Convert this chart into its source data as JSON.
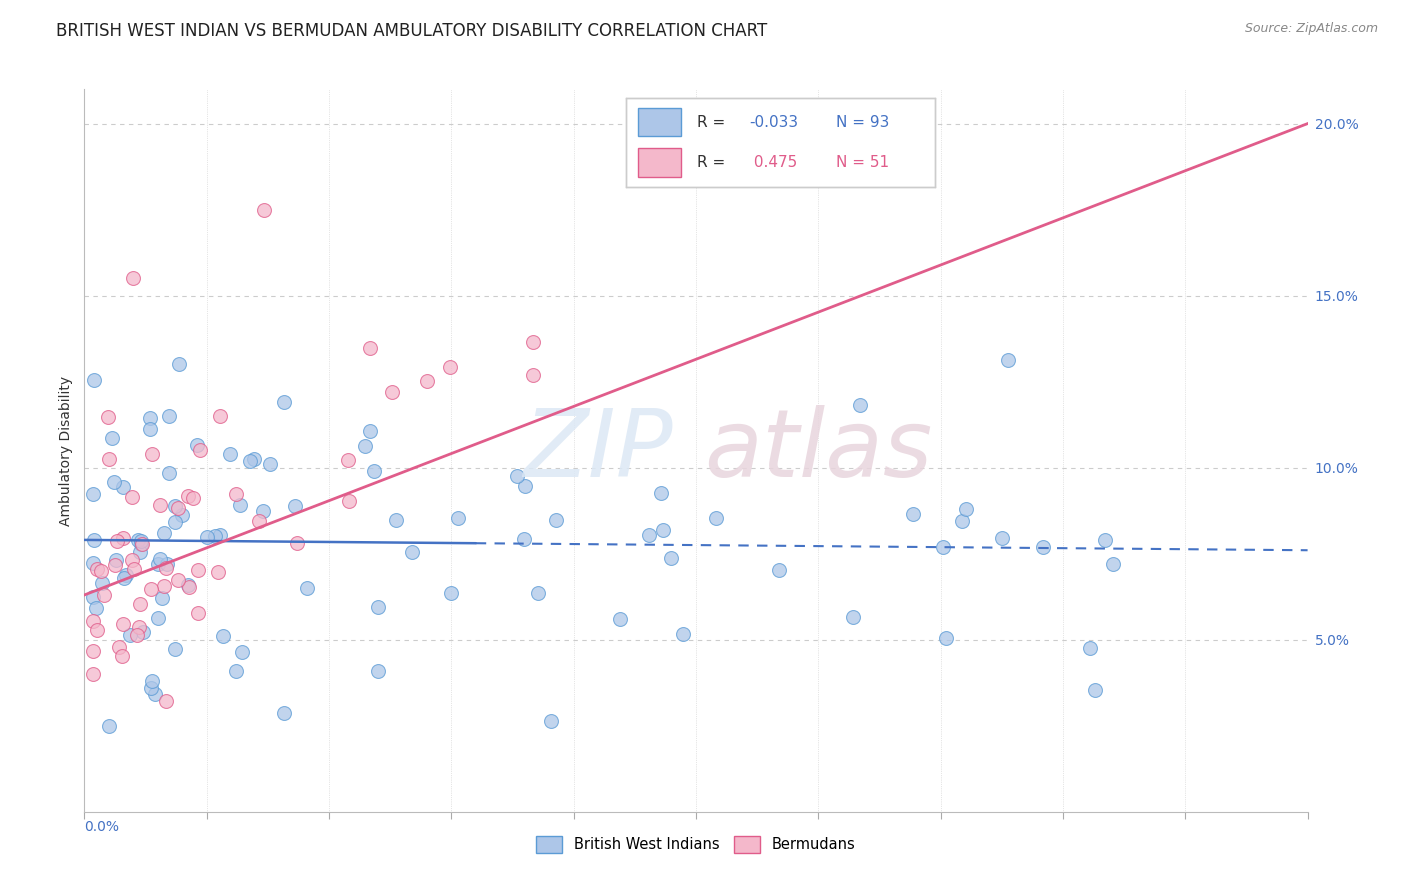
{
  "title": "BRITISH WEST INDIAN VS BERMUDAN AMBULATORY DISABILITY CORRELATION CHART",
  "source": "Source: ZipAtlas.com",
  "ylabel": "Ambulatory Disability",
  "ylabel_right_ticks": [
    "5.0%",
    "10.0%",
    "15.0%",
    "20.0%"
  ],
  "ylabel_right_vals": [
    0.05,
    0.1,
    0.15,
    0.2
  ],
  "xlim": [
    0.0,
    0.15
  ],
  "ylim": [
    0.0,
    0.21
  ],
  "group1_label": "British West Indians",
  "group1_color": "#adc6e8",
  "group1_edge_color": "#5b9bd5",
  "group1_line_color": "#4472c4",
  "group1_R": -0.033,
  "group1_N": 93,
  "group2_label": "Bermudans",
  "group2_color": "#f4b8cb",
  "group2_edge_color": "#e05c8a",
  "group2_line_color": "#e05c8a",
  "group2_R": 0.475,
  "group2_N": 51,
  "background_color": "#ffffff",
  "grid_color": "#cccccc",
  "title_fontsize": 12,
  "axis_label_fontsize": 10,
  "tick_fontsize": 10
}
